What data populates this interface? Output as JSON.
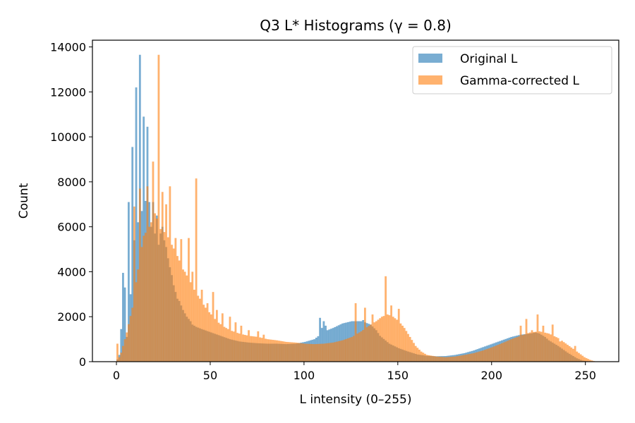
{
  "chart_data": {
    "type": "bar",
    "title": "Q3 L* Histograms (γ = 0.8)",
    "xlabel": "L intensity (0–255)",
    "ylabel": "Count",
    "xlim": [
      -12.8,
      267.8
    ],
    "ylim": [
      0,
      14300
    ],
    "xticks": [
      0,
      50,
      100,
      150,
      200,
      250
    ],
    "yticks": [
      0,
      2000,
      4000,
      6000,
      8000,
      10000,
      12000,
      14000
    ],
    "grid": false,
    "legend_position": "upper right",
    "bin_width": 1,
    "series": [
      {
        "name": "Original L",
        "color": "#1f77b4",
        "alpha": 0.6,
        "anchors": [
          [
            0,
            100
          ],
          [
            1,
            300
          ],
          [
            2,
            1450
          ],
          [
            3,
            3950
          ],
          [
            4,
            3300
          ],
          [
            5,
            1100
          ],
          [
            6,
            7100
          ],
          [
            7,
            3000
          ],
          [
            8,
            9550
          ],
          [
            9,
            5400
          ],
          [
            10,
            12200
          ],
          [
            11,
            6200
          ],
          [
            12,
            13650
          ],
          [
            13,
            6700
          ],
          [
            14,
            10900
          ],
          [
            15,
            7150
          ],
          [
            16,
            10450
          ],
          [
            17,
            7100
          ],
          [
            18,
            6000
          ],
          [
            19,
            7100
          ],
          [
            20,
            5700
          ],
          [
            21,
            6500
          ],
          [
            22,
            5200
          ],
          [
            23,
            5700
          ],
          [
            24,
            6000
          ],
          [
            25,
            5400
          ],
          [
            26,
            5100
          ],
          [
            27,
            4600
          ],
          [
            28,
            4200
          ],
          [
            29,
            3850
          ],
          [
            30,
            3400
          ],
          [
            31,
            3100
          ],
          [
            32,
            2800
          ],
          [
            33,
            2700
          ],
          [
            34,
            2500
          ],
          [
            35,
            2300
          ],
          [
            36,
            2150
          ],
          [
            37,
            2000
          ],
          [
            38,
            1900
          ],
          [
            39,
            1800
          ],
          [
            40,
            1650
          ],
          [
            42,
            1550
          ],
          [
            45,
            1450
          ],
          [
            50,
            1300
          ],
          [
            55,
            1150
          ],
          [
            60,
            1000
          ],
          [
            65,
            900
          ],
          [
            70,
            850
          ],
          [
            75,
            820
          ],
          [
            80,
            800
          ],
          [
            85,
            800
          ],
          [
            90,
            780
          ],
          [
            95,
            800
          ],
          [
            100,
            880
          ],
          [
            105,
            1000
          ],
          [
            108,
            1200
          ],
          [
            110,
            1800
          ],
          [
            112,
            1400
          ],
          [
            115,
            1500
          ],
          [
            120,
            1700
          ],
          [
            125,
            1800
          ],
          [
            130,
            1800
          ],
          [
            132,
            1750
          ],
          [
            135,
            1650
          ],
          [
            138,
            1400
          ],
          [
            140,
            1150
          ],
          [
            145,
            800
          ],
          [
            150,
            600
          ],
          [
            155,
            450
          ],
          [
            160,
            320
          ],
          [
            165,
            260
          ],
          [
            170,
            240
          ],
          [
            175,
            250
          ],
          [
            180,
            300
          ],
          [
            185,
            380
          ],
          [
            190,
            500
          ],
          [
            195,
            650
          ],
          [
            200,
            800
          ],
          [
            205,
            950
          ],
          [
            210,
            1100
          ],
          [
            215,
            1200
          ],
          [
            220,
            1250
          ],
          [
            223,
            1300
          ],
          [
            225,
            1250
          ],
          [
            228,
            1100
          ],
          [
            230,
            950
          ],
          [
            235,
            700
          ],
          [
            240,
            400
          ],
          [
            245,
            150
          ],
          [
            248,
            50
          ],
          [
            252,
            0
          ],
          [
            255,
            0
          ]
        ],
        "spikes": [
          [
            108,
            1950
          ],
          [
            131,
            1850
          ]
        ]
      },
      {
        "name": "Gamma-corrected L",
        "color": "#ff7f0e",
        "alpha": 0.6,
        "anchors": [
          [
            0,
            800
          ],
          [
            1,
            200
          ],
          [
            2,
            400
          ],
          [
            5,
            1300
          ],
          [
            8,
            2400
          ],
          [
            11,
            4100
          ],
          [
            14,
            5600
          ],
          [
            17,
            6000
          ],
          [
            20,
            6600
          ],
          [
            23,
            5900
          ],
          [
            26,
            5700
          ],
          [
            29,
            5200
          ],
          [
            32,
            4700
          ],
          [
            35,
            4100
          ],
          [
            38,
            3700
          ],
          [
            41,
            3200
          ],
          [
            44,
            2800
          ],
          [
            47,
            2400
          ],
          [
            50,
            2100
          ],
          [
            53,
            1800
          ],
          [
            56,
            1600
          ],
          [
            60,
            1400
          ],
          [
            65,
            1250
          ],
          [
            70,
            1150
          ],
          [
            75,
            1100
          ],
          [
            80,
            1000
          ],
          [
            85,
            950
          ],
          [
            90,
            880
          ],
          [
            95,
            850
          ],
          [
            100,
            800
          ],
          [
            105,
            780
          ],
          [
            110,
            800
          ],
          [
            115,
            850
          ],
          [
            120,
            950
          ],
          [
            125,
            1100
          ],
          [
            130,
            1350
          ],
          [
            135,
            1650
          ],
          [
            138,
            1800
          ],
          [
            141,
            2000
          ],
          [
            144,
            2100
          ],
          [
            147,
            2000
          ],
          [
            150,
            1800
          ],
          [
            153,
            1500
          ],
          [
            156,
            1100
          ],
          [
            159,
            700
          ],
          [
            162,
            450
          ],
          [
            165,
            300
          ],
          [
            170,
            230
          ],
          [
            175,
            200
          ],
          [
            180,
            230
          ],
          [
            185,
            300
          ],
          [
            190,
            380
          ],
          [
            195,
            500
          ],
          [
            200,
            650
          ],
          [
            205,
            820
          ],
          [
            210,
            1000
          ],
          [
            215,
            1150
          ],
          [
            220,
            1300
          ],
          [
            225,
            1350
          ],
          [
            230,
            1250
          ],
          [
            235,
            1050
          ],
          [
            240,
            750
          ],
          [
            245,
            450
          ],
          [
            249,
            200
          ],
          [
            252,
            80
          ],
          [
            255,
            0
          ]
        ],
        "spikes": [
          [
            9,
            6900
          ],
          [
            12,
            7700
          ],
          [
            16,
            7800
          ],
          [
            19,
            8900
          ],
          [
            22,
            13650
          ],
          [
            24,
            7550
          ],
          [
            26,
            7000
          ],
          [
            28,
            7800
          ],
          [
            31,
            5500
          ],
          [
            34,
            5450
          ],
          [
            36,
            4000
          ],
          [
            38,
            5500
          ],
          [
            40,
            4000
          ],
          [
            42,
            8150
          ],
          [
            45,
            3200
          ],
          [
            48,
            2600
          ],
          [
            51,
            3100
          ],
          [
            53,
            2300
          ],
          [
            56,
            2150
          ],
          [
            60,
            2000
          ],
          [
            63,
            1750
          ],
          [
            66,
            1600
          ],
          [
            70,
            1400
          ],
          [
            75,
            1350
          ],
          [
            78,
            1200
          ],
          [
            127,
            2600
          ],
          [
            132,
            2400
          ],
          [
            136,
            2100
          ],
          [
            143,
            3800
          ],
          [
            146,
            2500
          ],
          [
            150,
            2350
          ],
          [
            215,
            1600
          ],
          [
            218,
            1900
          ],
          [
            221,
            1400
          ],
          [
            224,
            2100
          ],
          [
            227,
            1600
          ],
          [
            232,
            1650
          ],
          [
            236,
            900
          ],
          [
            244,
            700
          ]
        ]
      }
    ]
  }
}
